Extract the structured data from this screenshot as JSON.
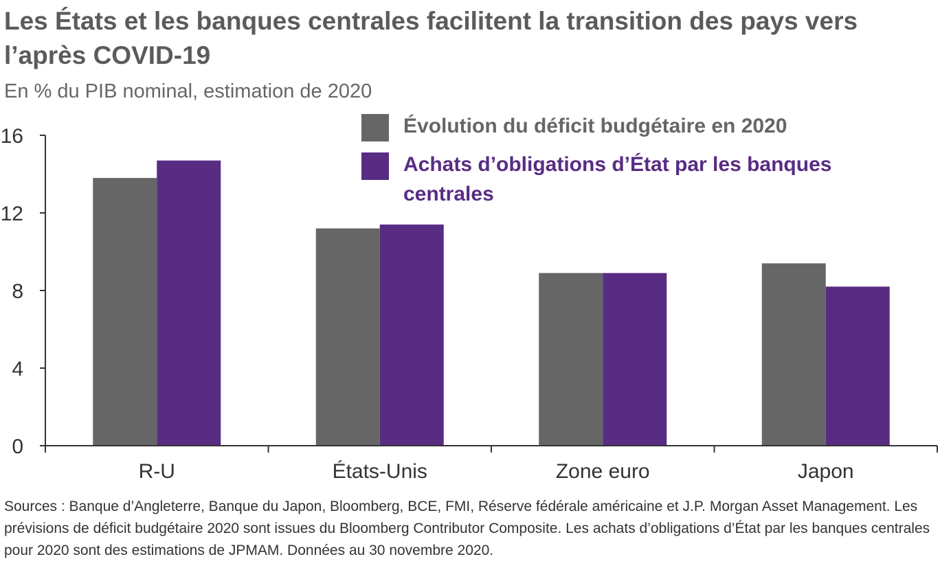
{
  "title": "Les États et les banques centrales facilitent la transition des pays vers l’après COVID-19",
  "subtitle": "En % du PIB nominal, estimation de 2020",
  "source": "Sources : Banque d’Angleterre, Banque du Japon, Bloomberg, BCE, FMI, Réserve fédérale américaine et J.P. Morgan Asset Management. Les prévisions de déficit budgétaire 2020 sont issues du Bloomberg Contributor Composite. Les achats d’obligations d’État par les banques centrales pour 2020 sont des estimations de JPMAM. Données au 30 novembre 2020.",
  "colors": {
    "gray": "#666666",
    "purple": "#582c83"
  },
  "chart_data": {
    "type": "bar",
    "categories": [
      "R-U",
      "États-Unis",
      "Zone euro",
      "Japon"
    ],
    "series": [
      {
        "name": "Évolution du déficit budgétaire en 2020",
        "color": "#666666",
        "values": [
          13.8,
          11.2,
          8.9,
          9.4
        ]
      },
      {
        "name": "Achats d’obligations d’État par les banques centrales",
        "color": "#582c83",
        "values": [
          14.7,
          11.4,
          8.9,
          8.2
        ]
      }
    ],
    "yticks": [
      0,
      4,
      8,
      12,
      16
    ],
    "ylim": [
      0,
      16
    ],
    "grid": false,
    "legend_position": "top-right"
  }
}
